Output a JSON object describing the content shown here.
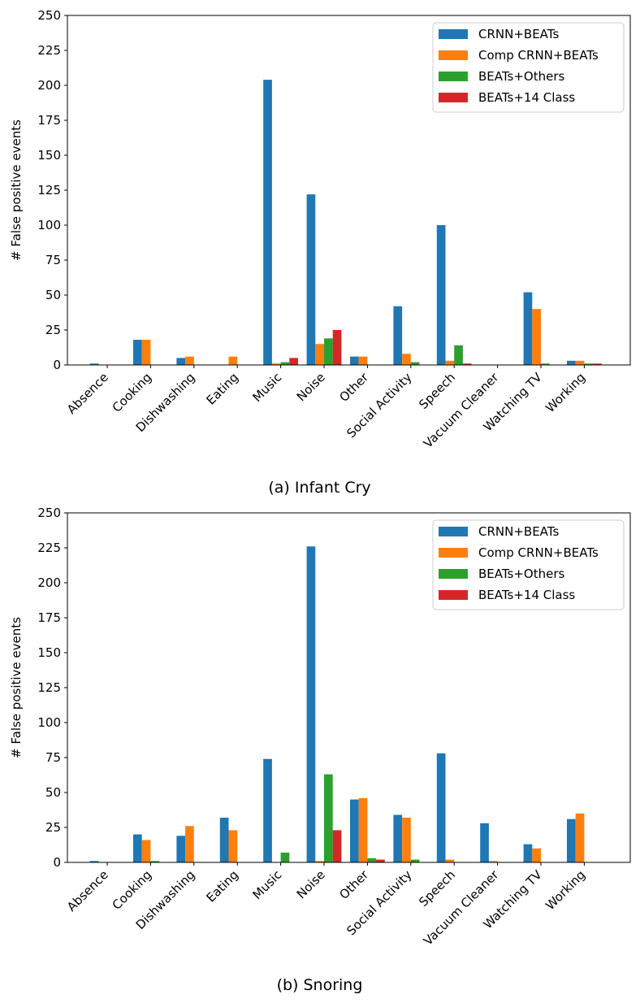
{
  "series_styles": [
    {
      "color": "#1f77b4"
    },
    {
      "color": "#ff7f0e"
    },
    {
      "color": "#2ca02c"
    },
    {
      "color": "#d62728"
    }
  ],
  "chart_data": [
    {
      "type": "bar",
      "caption": "(a) Infant Cry",
      "ylabel": "# False positive events",
      "xlabel": "",
      "ylim": [
        0,
        250
      ],
      "yticks": [
        0,
        25,
        50,
        75,
        100,
        125,
        150,
        175,
        200,
        225,
        250
      ],
      "legend_position": "top-right",
      "categories": [
        "Absence",
        "Cooking",
        "Dishwashing",
        "Eating",
        "Music",
        "Noise",
        "Other",
        "Social Activity",
        "Speech",
        "Vacuum Cleaner",
        "Watching TV",
        "Working"
      ],
      "series": [
        {
          "name": "CRNN+BEATs",
          "values": [
            1,
            18,
            5,
            0,
            204,
            122,
            6,
            42,
            100,
            0,
            52,
            3
          ]
        },
        {
          "name": "Comp CRNN+BEATs",
          "values": [
            0,
            18,
            6,
            6,
            1,
            15,
            6,
            8,
            3,
            0,
            40,
            3
          ]
        },
        {
          "name": "BEATs+Others",
          "values": [
            0,
            0,
            0,
            0,
            2,
            19,
            0,
            2,
            14,
            0,
            1,
            1
          ]
        },
        {
          "name": "BEATs+14 Class",
          "values": [
            0,
            0,
            0,
            0,
            5,
            25,
            0,
            0,
            1,
            0,
            0,
            1
          ]
        }
      ]
    },
    {
      "type": "bar",
      "caption": "(b) Snoring",
      "ylabel": "# False positive events",
      "xlabel": "",
      "ylim": [
        0,
        250
      ],
      "yticks": [
        0,
        25,
        50,
        75,
        100,
        125,
        150,
        175,
        200,
        225,
        250
      ],
      "legend_position": "top-right",
      "categories": [
        "Absence",
        "Cooking",
        "Dishwashing",
        "Eating",
        "Music",
        "Noise",
        "Other",
        "Social Activity",
        "Speech",
        "Vacuum Cleaner",
        "Watching TV",
        "Working"
      ],
      "series": [
        {
          "name": "CRNN+BEATs",
          "values": [
            1,
            20,
            19,
            32,
            74,
            226,
            45,
            34,
            78,
            28,
            13,
            31
          ]
        },
        {
          "name": "Comp CRNN+BEATs",
          "values": [
            0,
            16,
            26,
            23,
            0,
            1,
            46,
            32,
            2,
            1,
            10,
            35
          ]
        },
        {
          "name": "BEATs+Others",
          "values": [
            0,
            1,
            0,
            0,
            7,
            63,
            3,
            2,
            0,
            0,
            0,
            0
          ]
        },
        {
          "name": "BEATs+14 Class",
          "values": [
            0,
            0,
            0,
            0,
            0,
            23,
            2,
            0,
            0,
            0,
            0,
            0
          ]
        }
      ]
    }
  ]
}
